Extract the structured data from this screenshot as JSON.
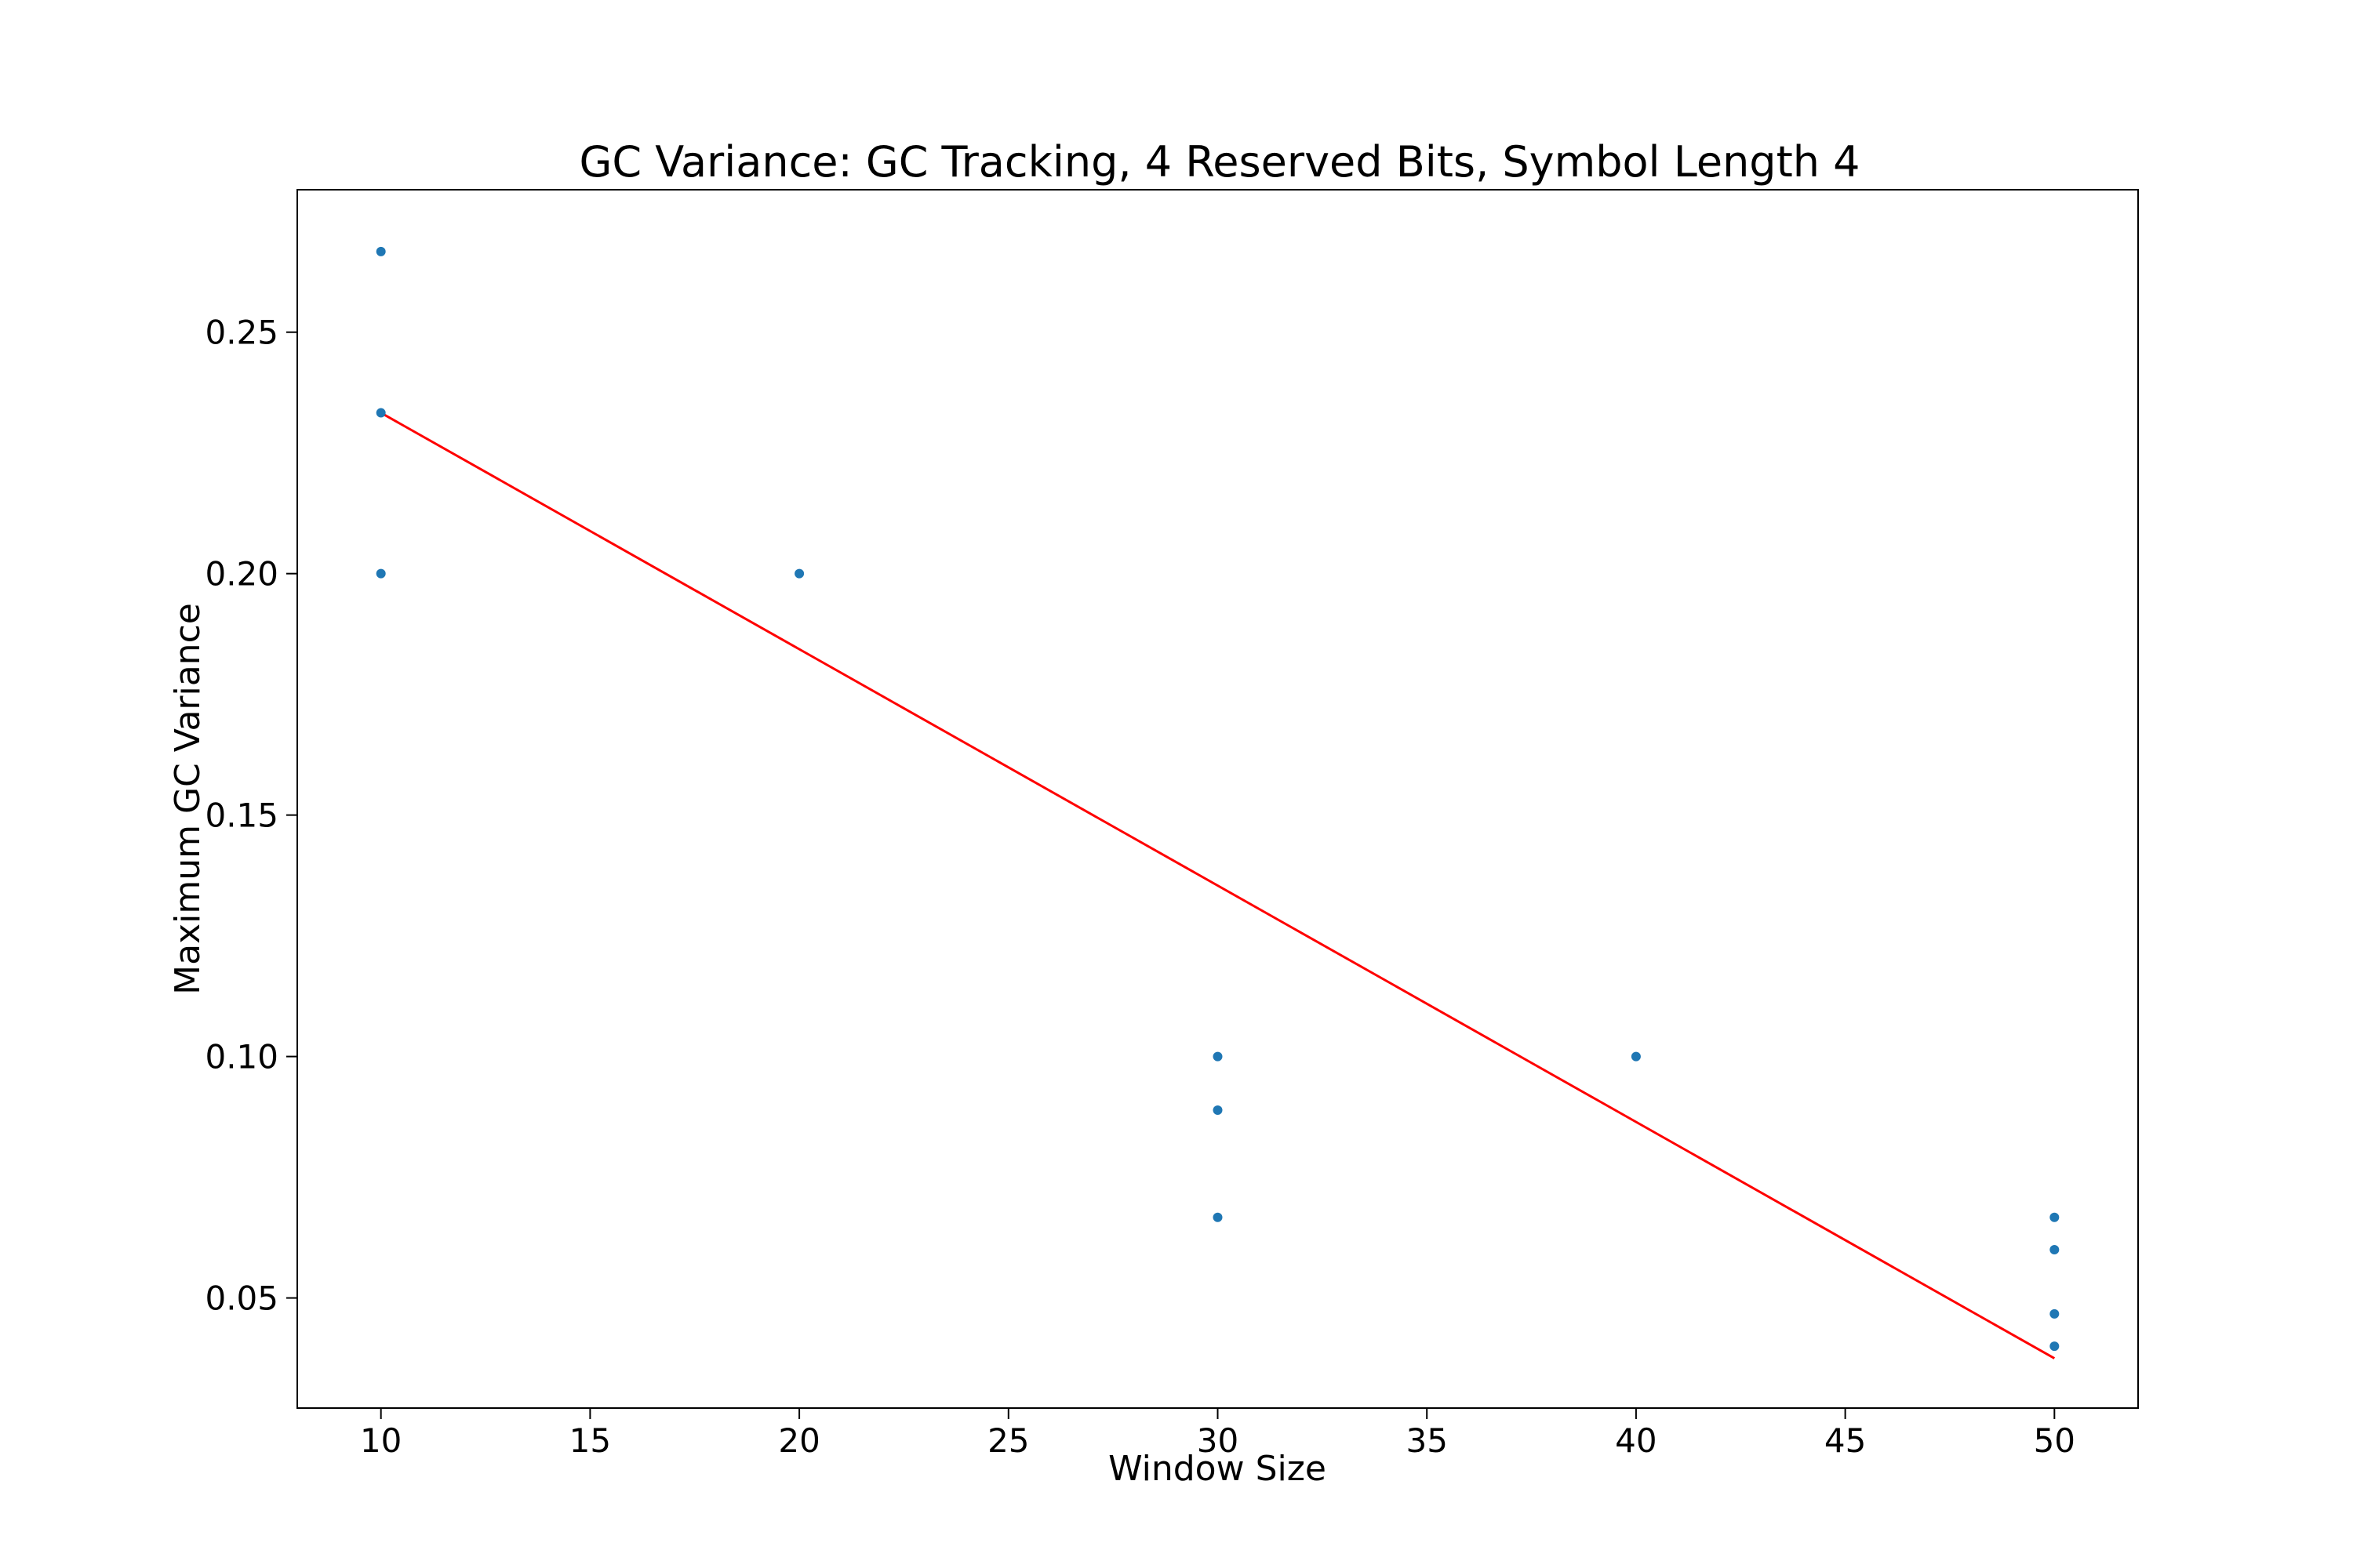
{
  "chart_data": {
    "type": "scatter",
    "title": "GC Variance: GC Tracking, 4 Reserved Bits, Symbol Length 4",
    "xlabel": "Window Size",
    "ylabel": "Maximum GC Variance",
    "xlim": [
      8,
      52
    ],
    "ylim": [
      0.0272,
      0.2795
    ],
    "xticks": [
      10,
      15,
      20,
      25,
      30,
      35,
      40,
      45,
      50
    ],
    "xtick_labels": [
      "10",
      "15",
      "20",
      "25",
      "30",
      "35",
      "40",
      "45",
      "50"
    ],
    "yticks": [
      0.05,
      0.1,
      0.15,
      0.2,
      0.25
    ],
    "ytick_labels": [
      "0.05",
      "0.10",
      "0.15",
      "0.20",
      "0.25"
    ],
    "grid": false,
    "points": {
      "x": [
        10,
        10,
        10,
        20,
        30,
        30,
        30,
        40,
        50,
        50,
        50,
        50
      ],
      "y": [
        0.2667,
        0.2333,
        0.2,
        0.2,
        0.1,
        0.0889,
        0.0667,
        0.1,
        0.0667,
        0.06,
        0.0467,
        0.04
      ],
      "color": "#1f77b4"
    },
    "fit_line": {
      "x": [
        10,
        50
      ],
      "y": [
        0.2333,
        0.0375
      ],
      "color": "#ff0000"
    }
  }
}
